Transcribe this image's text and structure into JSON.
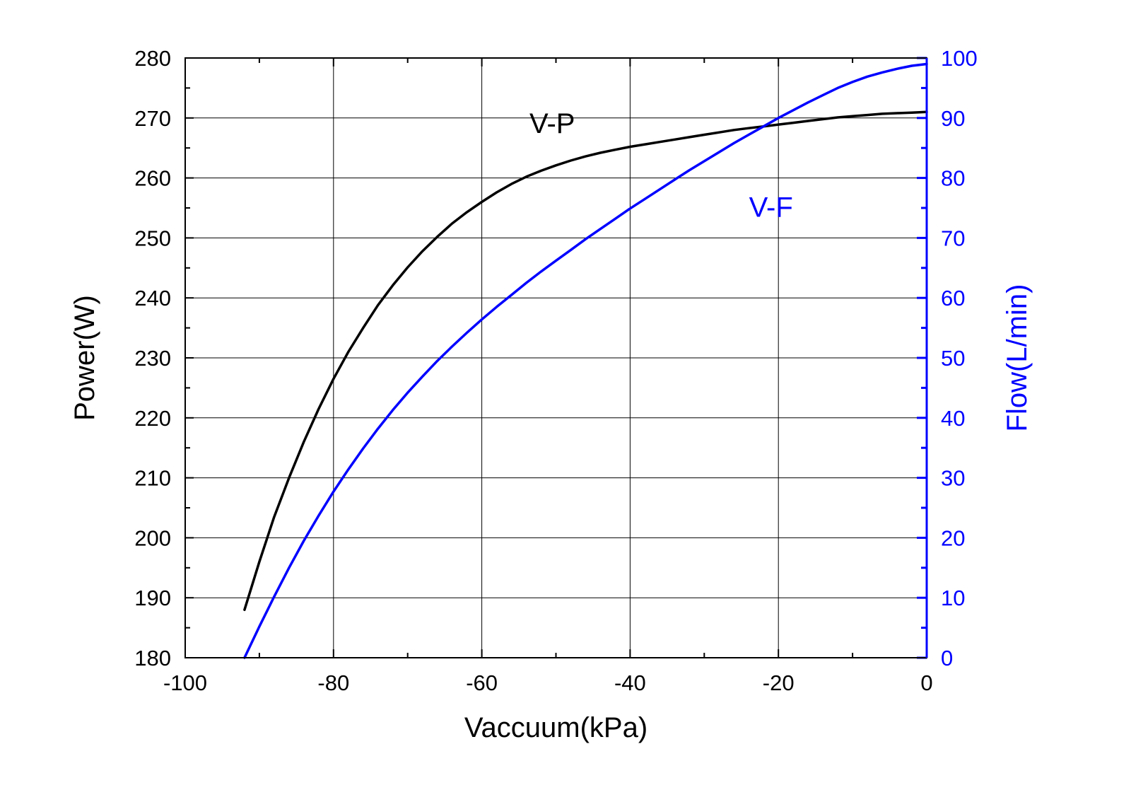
{
  "chart_data": {
    "type": "line",
    "xlabel": "Vaccuum(kPa)",
    "ylabel_left": "Power(W)",
    "ylabel_right": "Flow(L/min)",
    "xlim": [
      -100,
      0
    ],
    "ylim_left": [
      180,
      280
    ],
    "ylim_right": [
      0,
      100
    ],
    "x_ticks": [
      "-100",
      "-80",
      "-60",
      "-40",
      "-20",
      "0"
    ],
    "y_left_ticks": [
      "180",
      "190",
      "200",
      "210",
      "220",
      "230",
      "240",
      "250",
      "260",
      "270",
      "280"
    ],
    "y_right_ticks": [
      "0",
      "10",
      "20",
      "30",
      "40",
      "50",
      "60",
      "70",
      "80",
      "90",
      "100"
    ],
    "grid": true,
    "colors": {
      "left_axis": "#000000",
      "right_axis": "#0000ff",
      "grid": "#000000"
    },
    "series": [
      {
        "name": "V-P",
        "axis": "left",
        "color": "#000000",
        "label_x": -50.5,
        "label_y": 267.5,
        "x": [
          -92,
          -90,
          -88,
          -86,
          -84,
          -82,
          -80,
          -78,
          -76,
          -74,
          -72,
          -70,
          -68,
          -66,
          -64,
          -62,
          -60,
          -58,
          -56,
          -54,
          -52,
          -50,
          -48,
          -46,
          -44,
          -42,
          -40,
          -38,
          -36,
          -34,
          -32,
          -30,
          -28,
          -26,
          -24,
          -22,
          -20,
          -18,
          -16,
          -14,
          -12,
          -10,
          -8,
          -6,
          -4,
          -2,
          0
        ],
        "y": [
          188,
          196,
          203.5,
          210,
          216,
          221.5,
          226.5,
          231,
          235,
          238.8,
          242.1,
          245.1,
          247.8,
          250.2,
          252.4,
          254.3,
          256,
          257.6,
          259,
          260.2,
          261.2,
          262.1,
          262.9,
          263.6,
          264.2,
          264.7,
          265.2,
          265.6,
          266,
          266.4,
          266.8,
          267.2,
          267.6,
          268,
          268.3,
          268.6,
          268.9,
          269.2,
          269.5,
          269.8,
          270.1,
          270.3,
          270.5,
          270.7,
          270.8,
          270.9,
          271
        ]
      },
      {
        "name": "V-F",
        "axis": "right",
        "color": "#0000ff",
        "label_x": -21,
        "label_y": 73.5,
        "x": [
          -92,
          -90,
          -88,
          -86,
          -84,
          -82,
          -80,
          -78,
          -76,
          -74,
          -72,
          -70,
          -68,
          -66,
          -64,
          -62,
          -60,
          -58,
          -56,
          -54,
          -52,
          -50,
          -48,
          -46,
          -44,
          -42,
          -40,
          -38,
          -36,
          -34,
          -32,
          -30,
          -28,
          -26,
          -24,
          -22,
          -20,
          -18,
          -16,
          -14,
          -12,
          -10,
          -8,
          -6,
          -4,
          -2,
          0
        ],
        "y": [
          0,
          5.2,
          10.2,
          15,
          19.5,
          23.7,
          27.7,
          31.4,
          34.9,
          38.2,
          41.3,
          44.2,
          46.9,
          49.5,
          51.9,
          54.2,
          56.4,
          58.5,
          60.5,
          62.5,
          64.4,
          66.2,
          68,
          69.8,
          71.5,
          73.2,
          74.9,
          76.5,
          78.1,
          79.7,
          81.3,
          82.8,
          84.3,
          85.8,
          87.2,
          88.6,
          90,
          91.3,
          92.6,
          93.8,
          95,
          96,
          96.9,
          97.6,
          98.2,
          98.7,
          99
        ]
      }
    ]
  }
}
